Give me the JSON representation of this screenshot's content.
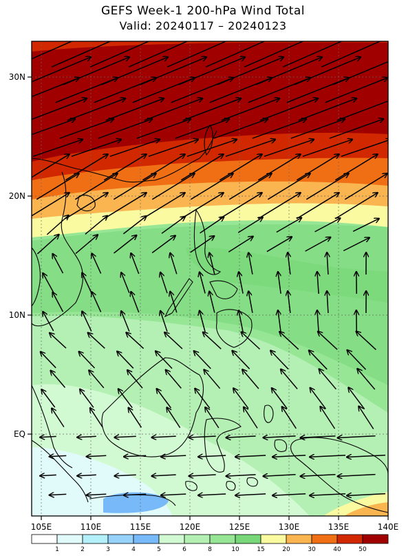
{
  "title": "GEFS Week-1 200-hPa Wind Total",
  "subtitle": "Valid: 20240117 – 20240123",
  "map": {
    "variable": "200-hPa wind speed (shaded) and vectors",
    "lon_range": [
      104,
      140
    ],
    "lat_range": [
      -7,
      33
    ],
    "lon_ticks": [
      "105E",
      "110E",
      "115E",
      "120E",
      "125E",
      "130E",
      "135E",
      "140E"
    ],
    "lat_ticks": [
      "30N",
      "20N",
      "10N",
      "EQ"
    ],
    "grid": "dotted"
  },
  "colorbar": {
    "labels": [
      "1",
      "2",
      "3",
      "4",
      "5",
      "6",
      "8",
      "10",
      "15",
      "20",
      "30",
      "40",
      "50"
    ],
    "colors": [
      "#ffffff",
      "#e1fafa",
      "#b4f0fa",
      "#96d2fa",
      "#78b9fa",
      "#d2fad2",
      "#b4f0b4",
      "#96e696",
      "#78d778",
      "#fafaa0",
      "#fab450",
      "#f06e14",
      "#d22800",
      "#a00000"
    ]
  }
}
